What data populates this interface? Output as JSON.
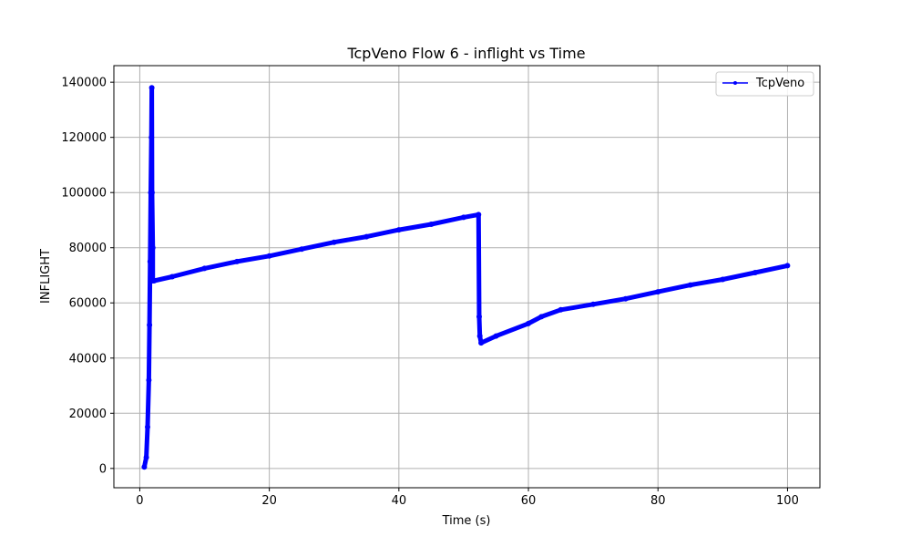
{
  "chart_data": {
    "type": "line",
    "title": "TcpVeno Flow 6 - inflight vs Time",
    "xlabel": "Time (s)",
    "ylabel": "INFLIGHT",
    "xlim": [
      -4,
      105
    ],
    "ylim": [
      -7000,
      146000
    ],
    "xticks": [
      0,
      20,
      40,
      60,
      80,
      100
    ],
    "yticks": [
      0,
      20000,
      40000,
      60000,
      80000,
      100000,
      120000,
      140000
    ],
    "grid": true,
    "legend_position": "top-right",
    "colors": {
      "series": "#0000ff",
      "grid": "#b0b0b0"
    },
    "series": [
      {
        "name": "TcpVeno",
        "x": [
          0.7,
          1.0,
          1.2,
          1.4,
          1.5,
          1.6,
          1.7,
          1.8,
          1.85,
          1.9,
          2.0,
          2.0,
          2.2,
          5,
          10,
          15,
          20,
          25,
          30,
          35,
          40,
          45,
          50,
          52.3,
          52.4,
          52.5,
          52.7,
          55,
          60,
          62,
          65,
          70,
          75,
          80,
          85,
          90,
          95,
          100
        ],
        "y": [
          500,
          4000,
          15000,
          32000,
          52000,
          75000,
          100000,
          120000,
          138000,
          100000,
          80000,
          68000,
          68000,
          69500,
          72500,
          75000,
          77000,
          79500,
          82000,
          84000,
          86500,
          88500,
          91000,
          92000,
          55000,
          48000,
          45500,
          48000,
          52500,
          55000,
          57500,
          59500,
          61500,
          64000,
          66500,
          68500,
          71000,
          73500
        ]
      }
    ]
  }
}
